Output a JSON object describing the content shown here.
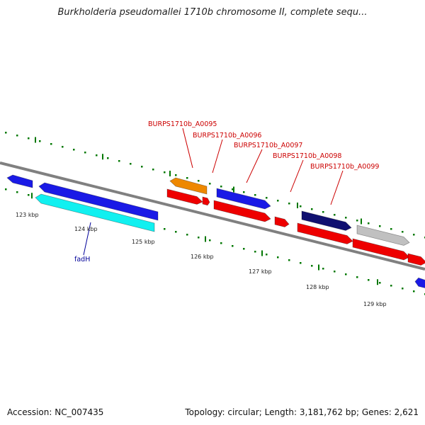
{
  "title": "Burkholderia pseudomallei 1710b chromosome II, complete sequ...",
  "footer": {
    "accession": "Accession: NC_007435",
    "summary": "Topology: circular; Length: 3,181,762 bp; Genes: 2,621"
  },
  "colors": {
    "backbone": "#808080",
    "tick": "#007700",
    "dot": "#007700",
    "gene_label": "#cc0000",
    "named_label": "#000099",
    "blue": "#1a1ae6",
    "cyan": "#11f0f0",
    "orange": "#ee8800",
    "red": "#ee0000",
    "navy": "#101070",
    "gray": "#c0c0c0"
  },
  "scale": {
    "ticks": [
      {
        "label": "123 kbp",
        "kbp": 123
      },
      {
        "label": "124 kbp",
        "kbp": 124
      },
      {
        "label": "125 kbp",
        "kbp": 125
      },
      {
        "label": "126 kbp",
        "kbp": 126
      },
      {
        "label": "127 kbp",
        "kbp": 127
      },
      {
        "label": "128 kbp",
        "kbp": 128
      },
      {
        "label": "129 kbp",
        "kbp": 129
      }
    ]
  },
  "gene_labels": [
    {
      "text": "BURPS1710b_A0095",
      "color": "gene_label"
    },
    {
      "text": "BURPS1710b_A0096",
      "color": "gene_label"
    },
    {
      "text": "BURPS1710b_A0097",
      "color": "gene_label"
    },
    {
      "text": "BURPS1710b_A0098",
      "color": "gene_label"
    },
    {
      "text": "BURPS1710b_A0099",
      "color": "gene_label"
    },
    {
      "text": "fadH",
      "color": "named_label"
    }
  ],
  "features": [
    {
      "name": "gene-blue-1",
      "color": "blue",
      "strand": "reverse"
    },
    {
      "name": "gene-blue-2",
      "color": "blue",
      "strand": "reverse"
    },
    {
      "name": "gene-cyan",
      "color": "cyan",
      "strand": "reverse"
    },
    {
      "name": "gene-orange",
      "color": "orange",
      "strand": "reverse"
    },
    {
      "name": "gene-red-1",
      "color": "red",
      "strand": "forward"
    },
    {
      "name": "gene-red-2",
      "color": "red",
      "strand": "forward"
    },
    {
      "name": "gene-blue-3",
      "color": "blue",
      "strand": "forward"
    },
    {
      "name": "gene-red-3",
      "color": "red",
      "strand": "forward"
    },
    {
      "name": "gene-red-4",
      "color": "red",
      "strand": "forward"
    },
    {
      "name": "gene-navy",
      "color": "navy",
      "strand": "forward"
    },
    {
      "name": "gene-red-5",
      "color": "red",
      "strand": "forward"
    },
    {
      "name": "gene-gray",
      "color": "gray",
      "strand": "forward"
    },
    {
      "name": "gene-red-6",
      "color": "red",
      "strand": "forward"
    },
    {
      "name": "gene-red-7",
      "color": "red",
      "strand": "forward"
    },
    {
      "name": "gene-blue-4",
      "color": "blue",
      "strand": "reverse"
    }
  ]
}
